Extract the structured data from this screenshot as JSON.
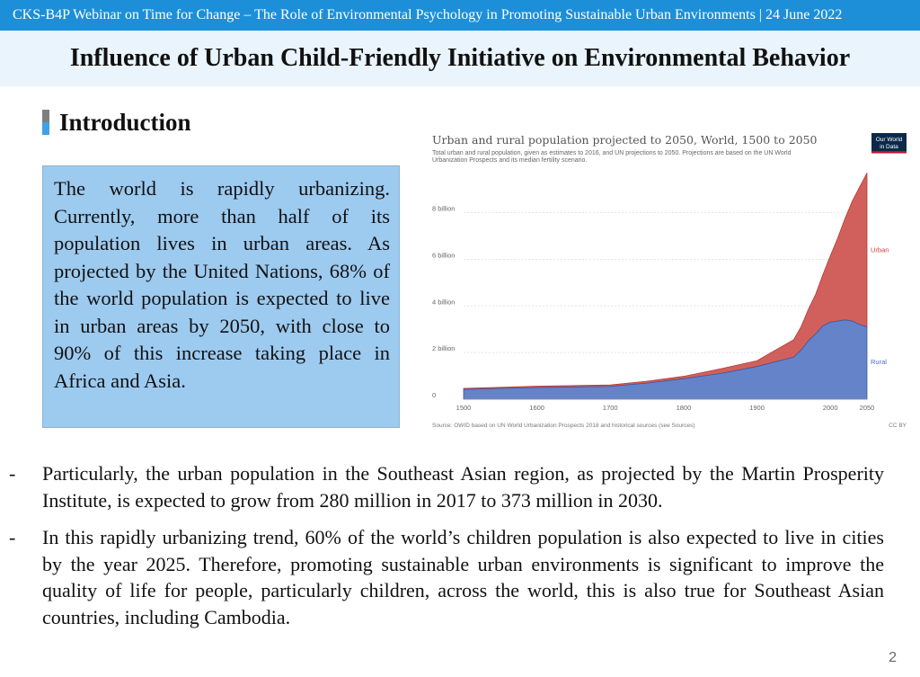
{
  "header": {
    "webinar_line": "CKS-B4P Webinar on Time for Change – The Role of Environmental Psychology in Promoting Sustainable Urban Environments | 24 June 2022",
    "slide_title": "Influence of Urban Child-Friendly Initiative on Environmental Behavior"
  },
  "section": {
    "title": "Introduction"
  },
  "intro_box": {
    "text": "The world is rapidly urbanizing. Currently, more than half of its population lives in urban areas. As projected by the United Nations, 68% of the world population is expected to live in urban areas by 2050, with close to 90% of this increase taking place in Africa and Asia."
  },
  "chart_data": {
    "type": "area",
    "title": "Urban and rural population projected to 2050, World, 1500 to 2050",
    "subtitle": "Total urban and rural population, given as estimates to 2016, and UN projections to 2050. Projections are based on the UN World Urbanization Prospects and its median fertility scenario.",
    "logo_text": [
      "Our World",
      "in Data"
    ],
    "source": "Source: OWID based on UN World Urbanization Prospects 2018 and historical sources (see Sources)",
    "license": "CC BY",
    "x_ticks": [
      "1500",
      "1600",
      "1700",
      "1800",
      "1900",
      "2000",
      "2050"
    ],
    "y_ticks": [
      "0",
      "2 billion",
      "4 billion",
      "6 billion",
      "8 billion"
    ],
    "x_range": [
      1500,
      2050
    ],
    "y_range": [
      0,
      9.6
    ],
    "grid": true,
    "stacked": true,
    "x": [
      1500,
      1600,
      1700,
      1750,
      1800,
      1850,
      1900,
      1950,
      1960,
      1970,
      1980,
      1990,
      2000,
      2010,
      2020,
      2030,
      2040,
      2050
    ],
    "series": [
      {
        "name": "Rural",
        "color": "#4a6dbf",
        "values": [
          0.42,
          0.5,
          0.55,
          0.69,
          0.88,
          1.1,
          1.4,
          1.8,
          2.1,
          2.5,
          2.8,
          3.15,
          3.3,
          3.35,
          3.4,
          3.35,
          3.2,
          3.1
        ]
      },
      {
        "name": "Urban",
        "color": "#c9443f",
        "values": [
          0.04,
          0.06,
          0.06,
          0.08,
          0.1,
          0.2,
          0.25,
          0.75,
          1.0,
          1.35,
          1.7,
          2.2,
          2.85,
          3.55,
          4.35,
          5.15,
          5.9,
          6.6
        ]
      }
    ]
  },
  "bullets": [
    {
      "dash": "-",
      "text": "Particularly, the urban population in the Southeast Asian region, as projected by the Martin Prosperity Institute, is expected to grow from 280 million in 2017 to 373 million in 2030."
    },
    {
      "dash": "-",
      "text": "In this rapidly urbanizing trend, 60% of the world’s children population is also expected to live in cities by the year 2025. Therefore, promoting sustainable urban environments is significant to improve the quality of life for people, particularly children, across the world, this is also true for Southeast Asian countries, including Cambodia."
    }
  ],
  "page_number": "2"
}
